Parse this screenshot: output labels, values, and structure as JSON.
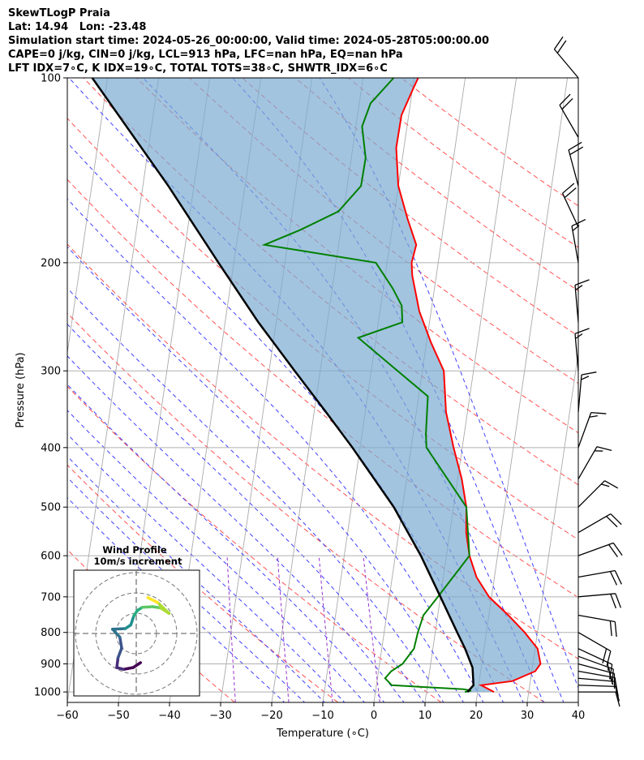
{
  "header": {
    "line1": "SkewTLogP Praia",
    "line2": "Lat: 14.94   Lon: -23.48",
    "line3": "Simulation start time: 2024-05-26_00:00:00, Valid time: 2024-05-28T05:00:00.00",
    "line4": "CAPE=0 j/kg, CIN=0 j/kg, LCL=913 hPa, LFC=nan hPa, EQ=nan hPa",
    "line5": "LFT IDX=7∘C, K IDX=19∘C, TOTAL TOTS=38∘C, SHWTR_IDX=6∘C"
  },
  "colors": {
    "temperature": "#ff0000",
    "dewpoint": "#008000",
    "parcel": "#000000",
    "fill": "#7aabd2",
    "dry_adiabat": "#ff5050",
    "moist_adiabat": "#4040ff",
    "mixing_ratio": "#9933cc",
    "isotherm": "#aaaaaa"
  },
  "chart_data": {
    "type": "line",
    "title": "",
    "xlabel": "Temperature (∘C)",
    "ylabel": "Pressure (hPa)",
    "xlim": [
      -60,
      40
    ],
    "ylim": [
      1040,
      100
    ],
    "y_scale": "log",
    "x_ticks": [
      "−60",
      "−50",
      "−40",
      "−30",
      "−20",
      "−10",
      "0",
      "10",
      "20",
      "30",
      "40"
    ],
    "y_ticks": [
      "100",
      "200",
      "300",
      "400",
      "500",
      "600",
      "700",
      "800",
      "900",
      "1000"
    ],
    "grid": true,
    "series": [
      {
        "name": "",
        "role": "temperature",
        "points": [
          [
            1000,
            23.2
          ],
          [
            975,
            20.5
          ],
          [
            960,
            26.5
          ],
          [
            925,
            30.7
          ],
          [
            900,
            31.5
          ],
          [
            850,
            30.5
          ],
          [
            800,
            27.5
          ],
          [
            750,
            23.8
          ],
          [
            700,
            19.5
          ],
          [
            650,
            16.5
          ],
          [
            600,
            14.5
          ],
          [
            550,
            13.2
          ],
          [
            500,
            12.5
          ],
          [
            450,
            10.8
          ],
          [
            400,
            8.3
          ],
          [
            350,
            5.8
          ],
          [
            300,
            4.2
          ],
          [
            270,
            0.9
          ],
          [
            240,
            -2.3
          ],
          [
            210,
            -4.7
          ],
          [
            200,
            -5.2
          ],
          [
            187,
            -4.8
          ],
          [
            170,
            -7.2
          ],
          [
            150,
            -10.0
          ],
          [
            130,
            -11.5
          ],
          [
            115,
            -11.4
          ],
          [
            105,
            -10.0
          ],
          [
            100,
            -9.2
          ]
        ]
      },
      {
        "name": "",
        "role": "dewpoint",
        "points": [
          [
            1000,
            17.5
          ],
          [
            995,
            18.7
          ],
          [
            990,
            17.2
          ],
          [
            975,
            3.0
          ],
          [
            950,
            1.5
          ],
          [
            925,
            2.5
          ],
          [
            900,
            4.5
          ],
          [
            850,
            6.3
          ],
          [
            800,
            6.6
          ],
          [
            750,
            7.2
          ],
          [
            700,
            9.5
          ],
          [
            600,
            14.5
          ],
          [
            500,
            12.5
          ],
          [
            400,
            3.0
          ],
          [
            380,
            2.5
          ],
          [
            330,
            1.8
          ],
          [
            290,
            -7.2
          ],
          [
            265,
            -13.5
          ],
          [
            250,
            -5.3
          ],
          [
            235,
            -5.9
          ],
          [
            220,
            -8.2
          ],
          [
            200,
            -12.2
          ],
          [
            187,
            -34.5
          ],
          [
            177,
            -28.0
          ],
          [
            165,
            -21.0
          ],
          [
            150,
            -17.3
          ],
          [
            135,
            -17.2
          ],
          [
            120,
            -18.8
          ],
          [
            110,
            -17.8
          ],
          [
            100,
            -14.0
          ]
        ]
      },
      {
        "name": "",
        "role": "parcel",
        "points": [
          [
            1000,
            18.0
          ],
          [
            975,
            19.0
          ],
          [
            913,
            18.3
          ],
          [
            850,
            16.3
          ],
          [
            800,
            14.3
          ],
          [
            700,
            10.0
          ],
          [
            600,
            5.0
          ],
          [
            500,
            -1.7
          ],
          [
            400,
            -11.5
          ],
          [
            350,
            -17.7
          ],
          [
            300,
            -25.0
          ],
          [
            250,
            -33.5
          ],
          [
            200,
            -43.0
          ],
          [
            150,
            -55.0
          ],
          [
            100,
            -73.0
          ]
        ]
      }
    ],
    "wind_barbs": {
      "pressures": [
        1000,
        975,
        950,
        925,
        900,
        875,
        850,
        800,
        750,
        700,
        650,
        600,
        550,
        500,
        450,
        400,
        350,
        300,
        250,
        200,
        175,
        150,
        125,
        100
      ],
      "speeds_kt": [
        12,
        12,
        13,
        15,
        16,
        17,
        18,
        22,
        22,
        22,
        22,
        20,
        20,
        17,
        17,
        17,
        17,
        17,
        17,
        17,
        22,
        22,
        22,
        22
      ],
      "directions_deg": [
        90,
        92,
        95,
        100,
        105,
        110,
        115,
        120,
        100,
        85,
        80,
        70,
        60,
        45,
        30,
        20,
        5,
        355,
        355,
        350,
        335,
        345,
        330,
        320
      ]
    },
    "inset": {
      "title": "Wind Profile",
      "subtitle": "10m/s increment",
      "ring_increment_ms": 10,
      "hodograph_uv": [
        [
          0.7,
          -4.8
        ],
        [
          -0.5,
          -5.6
        ],
        [
          -2.1,
          -5.9
        ],
        [
          -3.2,
          -5.6
        ],
        [
          -3.0,
          -4.0
        ],
        [
          -2.4,
          -2.4
        ],
        [
          -2.7,
          -0.6
        ],
        [
          -3.9,
          0.7
        ],
        [
          -1.8,
          0.8
        ],
        [
          -0.9,
          1.4
        ],
        [
          -0.4,
          2.9
        ],
        [
          0.2,
          3.8
        ],
        [
          1.0,
          4.3
        ],
        [
          2.7,
          4.4
        ],
        [
          4.0,
          4.2
        ],
        [
          5.4,
          3.3
        ],
        [
          3.5,
          5.1
        ],
        [
          1.9,
          5.9
        ]
      ]
    }
  }
}
